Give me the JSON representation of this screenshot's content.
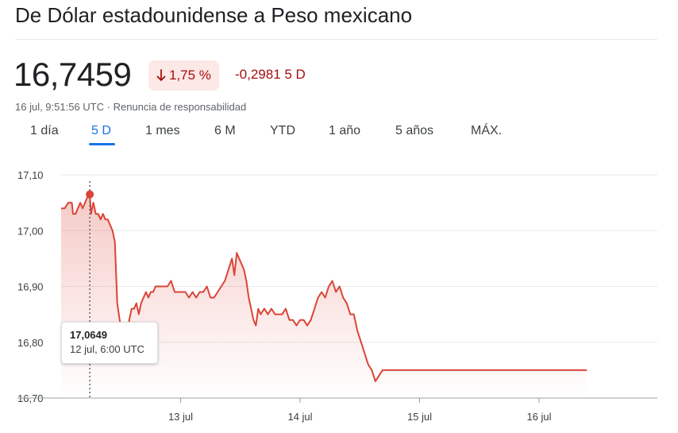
{
  "header": {
    "title": "De Dólar estadounidense a Peso mexicano"
  },
  "quote": {
    "price": "16,7459",
    "percent_change": "1,75 %",
    "abs_change": "-0,2981 5 D",
    "timestamp": "16 jul, 9:51:56 UTC",
    "separator": " · ",
    "disclaimer": "Renuncia de responsabilidad"
  },
  "tabs": [
    {
      "label": "1 día"
    },
    {
      "label": "5 D"
    },
    {
      "label": "1 mes"
    },
    {
      "label": "6 M"
    },
    {
      "label": "YTD"
    },
    {
      "label": "1 año"
    },
    {
      "label": "5 años"
    },
    {
      "label": "MÁX."
    }
  ],
  "active_tab": "5 D",
  "tooltip": {
    "value": "17,0649",
    "time": "12 jul, 6:00 UTC"
  },
  "colors": {
    "line": "#db4437",
    "negative": "#a50e0e",
    "negative_bg": "#fce8e6",
    "accent": "#1a73e8"
  },
  "chart_data": {
    "type": "area",
    "y_tick_labels": [
      "17,10",
      "17,00",
      "16,90",
      "16,80",
      "16,70"
    ],
    "y_ticks": [
      17.1,
      17.0,
      16.9,
      16.8,
      16.7
    ],
    "x_tick_labels": [
      "13 jul",
      "14 jul",
      "15 jul",
      "16 jul"
    ],
    "x_ticks": [
      1,
      2,
      3,
      4
    ],
    "ylim": [
      16.7,
      17.1
    ],
    "xlim": [
      0,
      4.95
    ],
    "grid": true,
    "highlight": {
      "x": 0.24,
      "y": 17.0649
    },
    "series": [
      {
        "x": [
          0.0,
          0.03,
          0.06,
          0.09,
          0.1,
          0.12,
          0.14,
          0.16,
          0.18,
          0.2,
          0.22,
          0.24,
          0.25,
          0.27,
          0.29,
          0.31,
          0.33,
          0.35,
          0.37,
          0.39,
          0.41,
          0.43,
          0.45,
          0.47,
          0.49,
          0.51,
          0.53,
          0.55,
          0.57,
          0.59,
          0.61,
          0.63,
          0.65,
          0.67,
          0.69,
          0.71,
          0.73,
          0.75,
          0.77,
          0.79,
          0.81,
          0.83,
          0.86,
          0.89,
          0.92,
          0.95,
          0.98,
          1.01,
          1.04,
          1.07,
          1.1,
          1.13,
          1.16,
          1.19,
          1.22,
          1.25,
          1.28,
          1.31,
          1.34,
          1.37,
          1.4,
          1.43,
          1.45,
          1.47,
          1.49,
          1.51,
          1.53,
          1.55,
          1.57,
          1.59,
          1.61,
          1.63,
          1.65,
          1.67,
          1.7,
          1.73,
          1.76,
          1.79,
          1.82,
          1.85,
          1.88,
          1.91,
          1.94,
          1.97,
          2.0,
          2.03,
          2.06,
          2.09,
          2.12,
          2.15,
          2.18,
          2.21,
          2.24,
          2.27,
          2.3,
          2.33,
          2.36,
          2.39,
          2.42,
          2.45,
          2.48,
          2.51,
          2.54,
          2.57,
          2.6,
          2.63,
          2.66,
          2.69,
          2.72,
          2.75,
          2.77,
          2.79,
          2.81,
          2.83,
          2.85,
          2.88,
          2.91,
          3.0,
          3.2,
          3.4,
          3.6,
          3.8,
          4.0,
          4.2,
          4.4
        ],
        "y": [
          17.04,
          17.04,
          17.05,
          17.05,
          17.03,
          17.03,
          17.04,
          17.05,
          17.04,
          17.05,
          17.06,
          17.0649,
          17.03,
          17.05,
          17.03,
          17.03,
          17.02,
          17.03,
          17.02,
          17.02,
          17.01,
          17.0,
          16.98,
          16.87,
          16.84,
          16.82,
          16.8,
          16.8,
          16.84,
          16.86,
          16.86,
          16.87,
          16.85,
          16.87,
          16.88,
          16.89,
          16.88,
          16.89,
          16.89,
          16.9,
          16.9,
          16.9,
          16.9,
          16.9,
          16.91,
          16.89,
          16.89,
          16.89,
          16.89,
          16.88,
          16.89,
          16.88,
          16.89,
          16.89,
          16.9,
          16.88,
          16.88,
          16.89,
          16.9,
          16.91,
          16.93,
          16.95,
          16.92,
          16.96,
          16.95,
          16.94,
          16.93,
          16.91,
          16.88,
          16.86,
          16.84,
          16.83,
          16.86,
          16.85,
          16.86,
          16.85,
          16.86,
          16.85,
          16.85,
          16.85,
          16.86,
          16.84,
          16.84,
          16.83,
          16.84,
          16.84,
          16.83,
          16.84,
          16.86,
          16.88,
          16.89,
          16.88,
          16.9,
          16.91,
          16.89,
          16.9,
          16.88,
          16.87,
          16.85,
          16.85,
          16.82,
          16.8,
          16.78,
          16.76,
          16.75,
          16.73,
          16.74,
          16.75,
          16.75,
          16.75,
          16.75,
          16.75,
          16.75,
          16.75,
          16.75,
          16.75,
          16.75,
          16.75,
          16.75,
          16.75,
          16.75,
          16.75,
          16.75,
          16.75,
          16.75
        ]
      }
    ]
  }
}
